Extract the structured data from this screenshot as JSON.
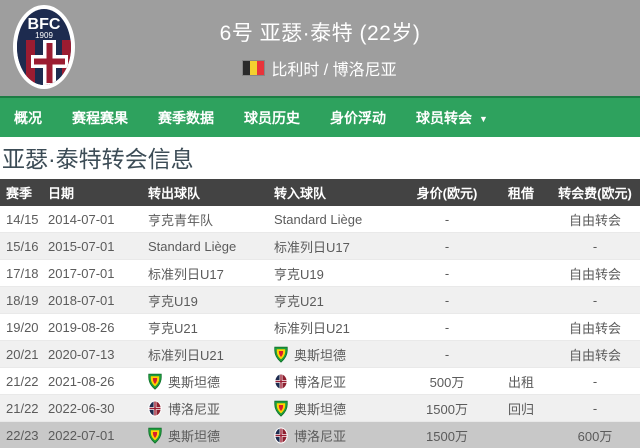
{
  "header": {
    "title": "6号 亚瑟·泰特 (22岁)",
    "nationality_club": "比利时 / 博洛尼亚",
    "club_crest": "bologna-crest",
    "flag": "belgium-flag",
    "crest_text_line1": "BFC",
    "crest_text_line2": "1909",
    "bg_color": "#9e9e9e"
  },
  "nav": {
    "bg_color": "#2ea25e",
    "active_index": 5,
    "tabs": [
      {
        "id": "overview",
        "label": "概况"
      },
      {
        "id": "fixtures",
        "label": "赛程赛果"
      },
      {
        "id": "season-stats",
        "label": "赛季数据"
      },
      {
        "id": "player-history",
        "label": "球员历史"
      },
      {
        "id": "value-history",
        "label": "身价浮动"
      },
      {
        "id": "transfers",
        "label": "球员转会"
      }
    ]
  },
  "section": {
    "title": "亚瑟·泰特转会信息"
  },
  "table": {
    "header_bg": "#434343",
    "highlight_row_bg": "#c8c8c8",
    "columns": [
      {
        "id": "season",
        "label": "赛季"
      },
      {
        "id": "date",
        "label": "日期"
      },
      {
        "id": "from-team",
        "label": "转出球队"
      },
      {
        "id": "to-team",
        "label": "转入球队"
      },
      {
        "id": "market-value",
        "label": "身价(欧元)"
      },
      {
        "id": "loan",
        "label": "租借"
      },
      {
        "id": "fee",
        "label": "转会费(欧元)"
      }
    ],
    "rows": [
      {
        "season": "14/15",
        "date": "2014-07-01",
        "from": {
          "name": "亨克青年队",
          "logo": ""
        },
        "to": {
          "name": "Standard Liège",
          "logo": ""
        },
        "value": "-",
        "loan": "",
        "fee": "自由转会",
        "highlight": false
      },
      {
        "season": "15/16",
        "date": "2015-07-01",
        "from": {
          "name": "Standard Liège",
          "logo": ""
        },
        "to": {
          "name": "标准列日U17",
          "logo": ""
        },
        "value": "-",
        "loan": "",
        "fee": "-",
        "highlight": false
      },
      {
        "season": "17/18",
        "date": "2017-07-01",
        "from": {
          "name": "标准列日U17",
          "logo": ""
        },
        "to": {
          "name": "亨克U19",
          "logo": ""
        },
        "value": "-",
        "loan": "",
        "fee": "自由转会",
        "highlight": false
      },
      {
        "season": "18/19",
        "date": "2018-07-01",
        "from": {
          "name": "亨克U19",
          "logo": ""
        },
        "to": {
          "name": "亨克U21",
          "logo": ""
        },
        "value": "-",
        "loan": "",
        "fee": "-",
        "highlight": false
      },
      {
        "season": "19/20",
        "date": "2019-08-26",
        "from": {
          "name": "亨克U21",
          "logo": ""
        },
        "to": {
          "name": "标准列日U21",
          "logo": ""
        },
        "value": "-",
        "loan": "",
        "fee": "自由转会",
        "highlight": false
      },
      {
        "season": "20/21",
        "date": "2020-07-13",
        "from": {
          "name": "标准列日U21",
          "logo": ""
        },
        "to": {
          "name": "奥斯坦德",
          "logo": "oostende"
        },
        "value": "-",
        "loan": "",
        "fee": "自由转会",
        "highlight": false
      },
      {
        "season": "21/22",
        "date": "2021-08-26",
        "from": {
          "name": "奥斯坦德",
          "logo": "oostende"
        },
        "to": {
          "name": "博洛尼亚",
          "logo": "bologna"
        },
        "value": "500万",
        "loan": "出租",
        "fee": "-",
        "highlight": false
      },
      {
        "season": "21/22",
        "date": "2022-06-30",
        "from": {
          "name": "博洛尼亚",
          "logo": "bologna"
        },
        "to": {
          "name": "奥斯坦德",
          "logo": "oostende"
        },
        "value": "1500万",
        "loan": "回归",
        "fee": "-",
        "highlight": false
      },
      {
        "season": "22/23",
        "date": "2022-07-01",
        "from": {
          "name": "奥斯坦德",
          "logo": "oostende"
        },
        "to": {
          "name": "博洛尼亚",
          "logo": "bologna"
        },
        "value": "1500万",
        "loan": "",
        "fee": "600万",
        "highlight": true
      }
    ]
  },
  "colors": {
    "nav_green": "#2ea25e",
    "header_gray": "#9e9e9e",
    "table_header_gray": "#434343",
    "alt_row": "#f0f0f0",
    "flag_black": "#2b2b2b",
    "flag_yellow": "#f3d02f",
    "flag_red": "#e8333a",
    "bologna_navy": "#1d2b4f",
    "bologna_red": "#9b1c31",
    "oostende_green": "#1f9d3c",
    "oostende_yellow": "#ffd400",
    "oostende_red": "#d91e2e"
  }
}
